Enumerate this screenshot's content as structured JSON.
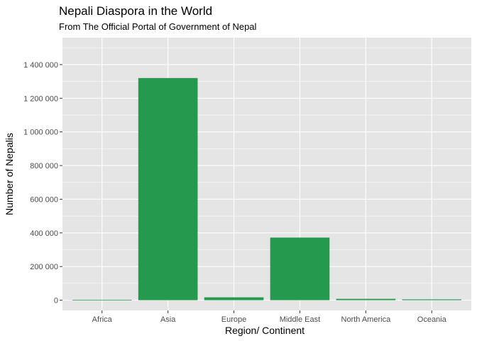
{
  "chart_data": {
    "type": "bar",
    "title": "Nepali Diaspora in the World",
    "subtitle": "From The Official Portal of Government of Nepal",
    "xlabel": "Region/ Continent",
    "ylabel": "Number of Nepalis",
    "categories": [
      "Africa",
      "Asia",
      "Europe",
      "Middle East",
      "North America",
      "Oceania"
    ],
    "values": [
      2500,
      1320000,
      17000,
      372000,
      8000,
      5000
    ],
    "ylim": [
      -61000,
      1560000
    ],
    "yticks": [
      0,
      200000,
      400000,
      600000,
      800000,
      1000000,
      1200000,
      1400000
    ],
    "ytick_labels": [
      "0",
      "200 000",
      "400 000",
      "600 000",
      "800 000",
      "1 000 000",
      "1 200 000",
      "1 400 000"
    ],
    "bar_color": "#259a4f",
    "panel_color": "#e5e5e5",
    "grid_color": "#ffffff",
    "grid": true,
    "legend": "none"
  }
}
